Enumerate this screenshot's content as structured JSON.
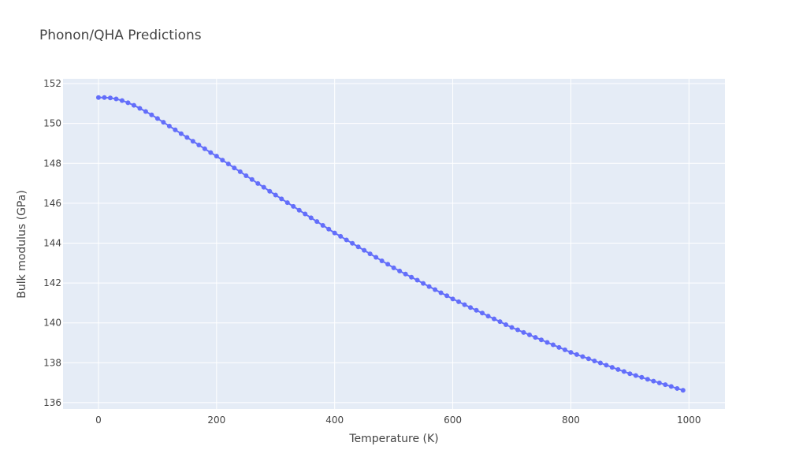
{
  "chart_data": {
    "type": "line",
    "title": "Phonon/QHA Predictions",
    "xlabel": "Temperature (K)",
    "ylabel": "Bulk modulus (GPa)",
    "x": [
      0,
      10,
      20,
      30,
      40,
      50,
      60,
      70,
      80,
      90,
      100,
      110,
      120,
      130,
      140,
      150,
      160,
      170,
      180,
      190,
      200,
      210,
      220,
      230,
      240,
      250,
      260,
      270,
      280,
      290,
      300,
      310,
      320,
      330,
      340,
      350,
      360,
      370,
      380,
      390,
      400,
      410,
      420,
      430,
      440,
      450,
      460,
      470,
      480,
      490,
      500,
      510,
      520,
      530,
      540,
      550,
      560,
      570,
      580,
      590,
      600,
      610,
      620,
      630,
      640,
      650,
      660,
      670,
      680,
      690,
      700,
      710,
      720,
      730,
      740,
      750,
      760,
      770,
      780,
      790,
      800,
      810,
      820,
      830,
      840,
      850,
      860,
      870,
      880,
      890,
      900,
      910,
      920,
      930,
      940,
      950,
      960,
      970,
      980,
      990
    ],
    "series": [
      {
        "name": "Bulk modulus",
        "color": "#636efa",
        "values": [
          151.3,
          151.3,
          151.28,
          151.23,
          151.15,
          151.04,
          150.91,
          150.76,
          150.6,
          150.43,
          150.25,
          150.06,
          149.87,
          149.68,
          149.49,
          149.3,
          149.11,
          148.92,
          148.73,
          148.54,
          148.36,
          148.16,
          147.97,
          147.77,
          147.58,
          147.38,
          147.19,
          146.99,
          146.8,
          146.6,
          146.41,
          146.22,
          146.03,
          145.84,
          145.65,
          145.46,
          145.27,
          145.08,
          144.89,
          144.7,
          144.51,
          144.34,
          144.16,
          143.99,
          143.81,
          143.64,
          143.46,
          143.29,
          143.11,
          142.94,
          142.76,
          142.6,
          142.45,
          142.29,
          142.14,
          141.98,
          141.82,
          141.67,
          141.51,
          141.36,
          141.2,
          141.06,
          140.91,
          140.77,
          140.63,
          140.49,
          140.34,
          140.2,
          140.06,
          139.91,
          139.77,
          139.65,
          139.52,
          139.4,
          139.27,
          139.15,
          139.02,
          138.9,
          138.77,
          138.65,
          138.52,
          138.41,
          138.31,
          138.2,
          138.09,
          137.99,
          137.88,
          137.77,
          137.66,
          137.56,
          137.45,
          137.36,
          137.27,
          137.17,
          137.08,
          136.99,
          136.9,
          136.81,
          136.71,
          136.62
        ]
      }
    ],
    "xlim": [
      -60,
      1061
    ],
    "xticks": [
      0,
      200,
      400,
      600,
      800,
      1000
    ],
    "ylim": [
      135.68,
      152.24
    ],
    "yticks": [
      136,
      138,
      140,
      142,
      144,
      146,
      148,
      150,
      152
    ],
    "grid": true,
    "plot_background": "#e5ecf6"
  }
}
